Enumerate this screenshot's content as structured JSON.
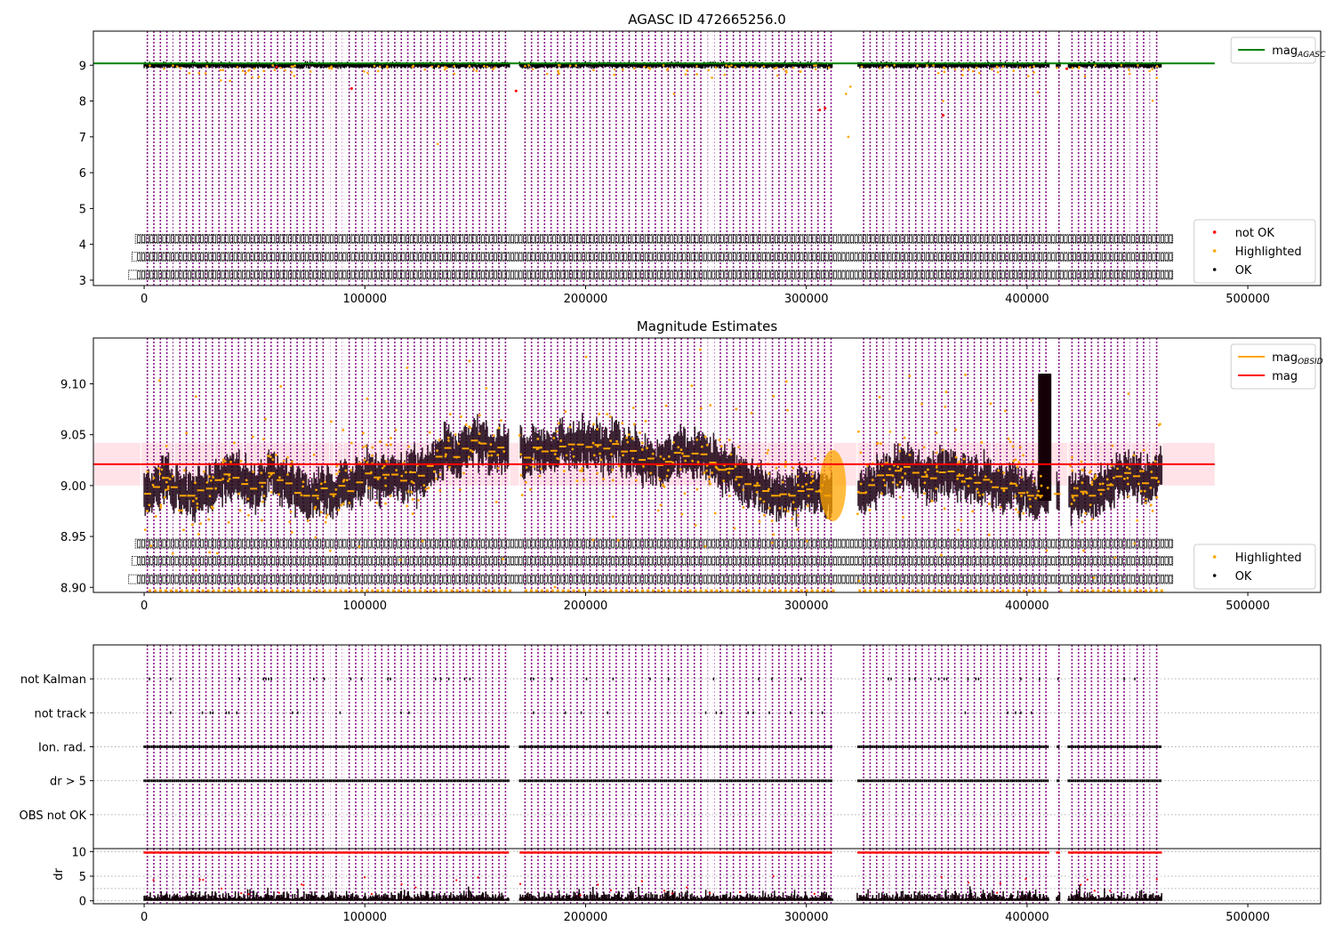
{
  "figure": {
    "background": "#ffffff"
  },
  "colors": {
    "purple": "#800080",
    "orange": "#ffa500",
    "red": "#ff0000",
    "green": "#008000",
    "black": "#000000",
    "band": "#ffc0cb"
  },
  "chart_data": [
    {
      "id": "p1",
      "type": "scatter",
      "title": "AGASC ID 472665256.0",
      "xlabel": "",
      "ylabel": "",
      "xlim": [
        -23000,
        533000
      ],
      "ylim": [
        2.85,
        9.95
      ],
      "xticks": [
        0,
        100000,
        200000,
        300000,
        400000,
        500000
      ],
      "xtick_labels": [
        "0",
        "100000",
        "200000",
        "300000",
        "400000",
        "500000"
      ],
      "yticks": [
        3,
        4,
        5,
        6,
        7,
        8,
        9
      ],
      "ytick_labels": [
        "3",
        "4",
        "5",
        "6",
        "7",
        "8",
        "9"
      ],
      "grid": false,
      "legends": [
        {
          "location": "upper-right",
          "entries": [
            {
              "label": "mag",
              "sub": "AGASC",
              "kind": "line",
              "color": "#008000"
            }
          ]
        },
        {
          "location": "lower-right",
          "entries": [
            {
              "label": "not OK",
              "kind": "point",
              "color": "#ff0000"
            },
            {
              "label": "Highlighted",
              "kind": "point",
              "color": "#ffa500"
            },
            {
              "label": "OK",
              "kind": "point",
              "color": "#000000"
            }
          ]
        }
      ],
      "series": [
        {
          "name": "mag_AGASC",
          "kind": "hline",
          "y": 9.05,
          "x": [
            -23000,
            485000
          ],
          "color": "#008000"
        },
        {
          "name": "OK",
          "kind": "points",
          "mean": 9.0,
          "color": "#000000"
        },
        {
          "name": "Highlighted",
          "kind": "points",
          "color": "#ffa500"
        },
        {
          "name": "not OK",
          "kind": "points",
          "color": "#ff0000"
        }
      ],
      "obsid_label_rows": [
        4.15,
        3.65,
        3.15
      ]
    },
    {
      "id": "p2",
      "type": "scatter",
      "title": "Magnitude Estimates",
      "xlabel": "",
      "ylabel": "",
      "xlim": [
        -23000,
        533000
      ],
      "ylim": [
        8.895,
        9.145
      ],
      "xticks": [
        0,
        100000,
        200000,
        300000,
        400000,
        500000
      ],
      "xtick_labels": [
        "0",
        "100000",
        "200000",
        "300000",
        "400000",
        "500000"
      ],
      "yticks": [
        8.9,
        8.95,
        9.0,
        9.05,
        9.1
      ],
      "ytick_labels": [
        "8.90",
        "8.95",
        "9.00",
        "9.05",
        "9.10"
      ],
      "grid": false,
      "legends": [
        {
          "location": "upper-right",
          "entries": [
            {
              "label": "mag",
              "sub": "OBSID",
              "kind": "line",
              "color": "#ffa500"
            },
            {
              "label": "mag",
              "kind": "line",
              "color": "#ff0000"
            }
          ]
        },
        {
          "location": "lower-right",
          "entries": [
            {
              "label": "Highlighted",
              "kind": "point",
              "color": "#ffa500"
            },
            {
              "label": "OK",
              "kind": "point",
              "color": "#000000"
            }
          ]
        }
      ],
      "series": [
        {
          "name": "mag",
          "kind": "hline",
          "y": 9.021,
          "x": [
            -23000,
            485000
          ],
          "color": "#ff0000"
        },
        {
          "name": "mag band",
          "kind": "band",
          "y": [
            9.0,
            9.042
          ],
          "x": [
            -23000,
            485000
          ],
          "color": "#ffc0cb"
        },
        {
          "name": "mag_OBSID",
          "kind": "step",
          "color": "#ffa500"
        },
        {
          "name": "OK",
          "kind": "points",
          "color": "#000000"
        },
        {
          "name": "Highlighted",
          "kind": "points",
          "color": "#ffa500"
        }
      ],
      "obsid_label_rows": [
        8.943,
        8.926,
        8.908
      ]
    },
    {
      "id": "p3",
      "type": "scatter",
      "title": "",
      "xlabel": "",
      "ylabel": "",
      "xlim": [
        -23000,
        533000
      ],
      "ylim": [
        0,
        6
      ],
      "categories": [
        "not Kalman",
        "not track",
        "Ion. rad.",
        "dr > 5",
        "OBS not OK"
      ],
      "category_y": [
        5,
        4,
        3,
        2,
        1
      ],
      "grid": "horizontal-dotted",
      "series": [
        {
          "name": "not Kalman",
          "color": "#000000"
        },
        {
          "name": "not track",
          "color": "#000000"
        },
        {
          "name": "Ion. rad.",
          "color": "#000000"
        },
        {
          "name": "dr > 5",
          "color": "#000000"
        }
      ]
    },
    {
      "id": "p4",
      "type": "scatter",
      "title": "",
      "xlabel": "",
      "ylabel": "dr",
      "xlim": [
        -23000,
        533000
      ],
      "ylim": [
        -0.6,
        10.6
      ],
      "xticks": [
        0,
        100000,
        200000,
        300000,
        400000,
        500000
      ],
      "xtick_labels": [
        "0",
        "100000",
        "200000",
        "300000",
        "400000",
        "500000"
      ],
      "yticks": [
        0,
        5,
        10
      ],
      "ytick_labels": [
        "0",
        "5",
        "10"
      ],
      "grid": "horizontal-dotted",
      "series": [
        {
          "name": "dr",
          "kind": "points",
          "color": "#000000"
        },
        {
          "name": "dr > 5",
          "kind": "points",
          "color": "#ff0000"
        }
      ]
    }
  ]
}
